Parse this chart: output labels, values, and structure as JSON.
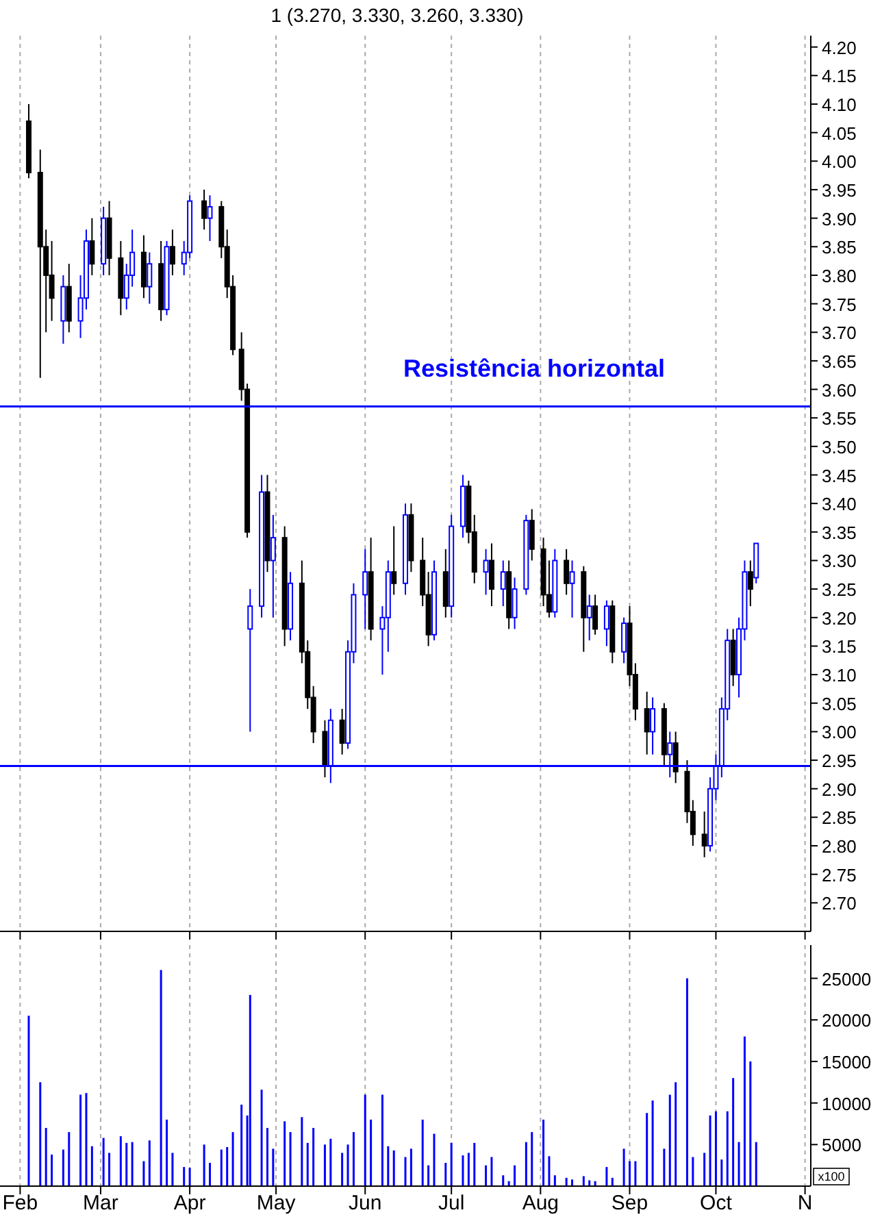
{
  "chart_data": [
    {
      "type": "candlestick",
      "title": "1 (3.270, 3.330, 3.260, 3.330)",
      "tick_labels": "y",
      "grid": "x",
      "xlim": [
        "--01-25",
        "--11-03"
      ],
      "xticks": [
        {
          "value": "--02-01",
          "label": null
        },
        {
          "value": "--03-01",
          "label": null
        },
        {
          "value": "--04-01",
          "label": null
        },
        {
          "value": "--05-01",
          "label": null
        },
        {
          "value": "--06-01",
          "label": null
        },
        {
          "value": "--07-01",
          "label": null
        },
        {
          "value": "--08-01",
          "label": null
        },
        {
          "value": "--09-01",
          "label": null
        },
        {
          "value": "--10-01",
          "label": null
        },
        {
          "value": "--11-01",
          "label": null
        }
      ],
      "ylim": [
        2.65,
        4.22
      ],
      "yticks": [
        {
          "value": 2.7,
          "label": "2.70"
        },
        {
          "value": 2.75,
          "label": "2.75"
        },
        {
          "value": 2.8,
          "label": "2.80"
        },
        {
          "value": 2.85,
          "label": "2.85"
        },
        {
          "value": 2.9,
          "label": "2.90"
        },
        {
          "value": 2.95,
          "label": "2.95"
        },
        {
          "value": 3.0,
          "label": "3.00"
        },
        {
          "value": 3.05,
          "label": "3.05"
        },
        {
          "value": 3.1,
          "label": "3.10"
        },
        {
          "value": 3.15,
          "label": "3.15"
        },
        {
          "value": 3.2,
          "label": "3.20"
        },
        {
          "value": 3.25,
          "label": "3.25"
        },
        {
          "value": 3.3,
          "label": "3.30"
        },
        {
          "value": 3.35,
          "label": "3.35"
        },
        {
          "value": 3.4,
          "label": "3.40"
        },
        {
          "value": 3.45,
          "label": "3.45"
        },
        {
          "value": 3.5,
          "label": "3.50"
        },
        {
          "value": 3.55,
          "label": "3.55"
        },
        {
          "value": 3.6,
          "label": "3.60"
        },
        {
          "value": 3.65,
          "label": "3.65"
        },
        {
          "value": 3.7,
          "label": "3.70"
        },
        {
          "value": 3.75,
          "label": "3.75"
        },
        {
          "value": 3.8,
          "label": "3.80"
        },
        {
          "value": 3.85,
          "label": "3.85"
        },
        {
          "value": 3.9,
          "label": "3.90"
        },
        {
          "value": 3.95,
          "label": "3.95"
        },
        {
          "value": 4.0,
          "label": "4.00"
        },
        {
          "value": 4.05,
          "label": "4.05"
        },
        {
          "value": 4.1,
          "label": "4.10"
        },
        {
          "value": 4.15,
          "label": "4.15"
        },
        {
          "value": 4.2,
          "label": "4.20"
        }
      ],
      "ref_lines": [
        {
          "axis": "y",
          "value": 3.57,
          "label": "Resistência horizontal",
          "color": "#0000ff"
        },
        {
          "axis": "y",
          "value": 2.94,
          "color": "#0000ff"
        }
      ],
      "x": [
        "--02-04",
        "--02-08",
        "--02-10",
        "--02-12",
        "--02-16",
        "--02-18",
        "--02-22",
        "--02-24",
        "--02-26",
        "--03-02",
        "--03-04",
        "--03-08",
        "--03-10",
        "--03-12",
        "--03-16",
        "--03-18",
        "--03-22",
        "--03-24",
        "--03-26",
        "--03-30",
        "--04-01",
        "--04-06",
        "--04-08",
        "--04-12",
        "--04-14",
        "--04-16",
        "--04-19",
        "--04-21",
        "--04-22",
        "--04-26",
        "--04-28",
        "--04-30",
        "--05-04",
        "--05-06",
        "--05-10",
        "--05-12",
        "--05-14",
        "--05-18",
        "--05-20",
        "--05-24",
        "--05-26",
        "--05-28",
        "--06-01",
        "--06-03",
        "--06-07",
        "--06-09",
        "--06-11",
        "--06-15",
        "--06-17",
        "--06-21",
        "--06-23",
        "--06-25",
        "--06-29",
        "--07-01",
        "--07-05",
        "--07-07",
        "--07-09",
        "--07-13",
        "--07-15",
        "--07-19",
        "--07-21",
        "--07-23",
        "--07-27",
        "--07-29",
        "--08-02",
        "--08-04",
        "--08-06",
        "--08-10",
        "--08-12",
        "--08-16",
        "--08-18",
        "--08-20",
        "--08-24",
        "--08-26",
        "--08-30",
        "--09-01",
        "--09-03",
        "--09-07",
        "--09-09",
        "--09-13",
        "--09-15",
        "--09-17",
        "--09-21",
        "--09-23",
        "--09-27",
        "--09-29",
        "--10-01",
        "--10-03",
        "--10-05",
        "--10-07",
        "--10-09",
        "--10-11",
        "--10-13",
        "--10-15"
      ],
      "ohlc": [
        [
          4.07,
          4.1,
          3.97,
          3.98
        ],
        [
          3.98,
          4.02,
          3.62,
          3.85
        ],
        [
          3.85,
          3.88,
          3.7,
          3.8
        ],
        [
          3.8,
          3.86,
          3.72,
          3.76
        ],
        [
          3.72,
          3.8,
          3.68,
          3.78
        ],
        [
          3.78,
          3.82,
          3.7,
          3.72
        ],
        [
          3.72,
          3.8,
          3.69,
          3.76
        ],
        [
          3.76,
          3.88,
          3.74,
          3.86
        ],
        [
          3.86,
          3.9,
          3.8,
          3.82
        ],
        [
          3.82,
          3.92,
          3.8,
          3.9
        ],
        [
          3.9,
          3.93,
          3.8,
          3.83
        ],
        [
          3.83,
          3.86,
          3.73,
          3.76
        ],
        [
          3.76,
          3.82,
          3.74,
          3.8
        ],
        [
          3.8,
          3.88,
          3.78,
          3.84
        ],
        [
          3.84,
          3.87,
          3.76,
          3.78
        ],
        [
          3.78,
          3.84,
          3.75,
          3.82
        ],
        [
          3.82,
          3.86,
          3.72,
          3.74
        ],
        [
          3.74,
          3.86,
          3.73,
          3.85
        ],
        [
          3.85,
          3.88,
          3.8,
          3.82
        ],
        [
          3.82,
          3.86,
          3.8,
          3.84
        ],
        [
          3.84,
          3.94,
          3.83,
          3.93
        ],
        [
          3.93,
          3.95,
          3.88,
          3.9
        ],
        [
          3.9,
          3.94,
          3.86,
          3.92
        ],
        [
          3.92,
          3.93,
          3.83,
          3.85
        ],
        [
          3.85,
          3.88,
          3.76,
          3.78
        ],
        [
          3.78,
          3.8,
          3.66,
          3.67
        ],
        [
          3.67,
          3.7,
          3.58,
          3.6
        ],
        [
          3.6,
          3.61,
          3.34,
          3.35
        ],
        [
          3.18,
          3.25,
          3.0,
          3.22
        ],
        [
          3.22,
          3.45,
          3.2,
          3.42
        ],
        [
          3.42,
          3.45,
          3.28,
          3.3
        ],
        [
          3.3,
          3.38,
          3.2,
          3.34
        ],
        [
          3.34,
          3.36,
          3.15,
          3.18
        ],
        [
          3.18,
          3.28,
          3.16,
          3.26
        ],
        [
          3.26,
          3.3,
          3.12,
          3.14
        ],
        [
          3.14,
          3.16,
          3.04,
          3.06
        ],
        [
          3.06,
          3.08,
          2.98,
          3.0
        ],
        [
          3.0,
          3.02,
          2.92,
          2.94
        ],
        [
          2.94,
          3.04,
          2.91,
          3.02
        ],
        [
          3.02,
          3.04,
          2.96,
          2.98
        ],
        [
          2.98,
          3.16,
          2.97,
          3.14
        ],
        [
          3.14,
          3.26,
          3.12,
          3.24
        ],
        [
          3.24,
          3.32,
          3.18,
          3.28
        ],
        [
          3.28,
          3.34,
          3.16,
          3.18
        ],
        [
          3.18,
          3.22,
          3.1,
          3.2
        ],
        [
          3.2,
          3.3,
          3.14,
          3.28
        ],
        [
          3.28,
          3.36,
          3.24,
          3.26
        ],
        [
          3.26,
          3.4,
          3.24,
          3.38
        ],
        [
          3.38,
          3.4,
          3.28,
          3.3
        ],
        [
          3.3,
          3.34,
          3.22,
          3.24
        ],
        [
          3.24,
          3.28,
          3.15,
          3.17
        ],
        [
          3.17,
          3.3,
          3.16,
          3.28
        ],
        [
          3.28,
          3.32,
          3.2,
          3.22
        ],
        [
          3.22,
          3.38,
          3.2,
          3.36
        ],
        [
          3.36,
          3.45,
          3.34,
          3.43
        ],
        [
          3.43,
          3.44,
          3.33,
          3.35
        ],
        [
          3.35,
          3.38,
          3.26,
          3.28
        ],
        [
          3.28,
          3.32,
          3.24,
          3.3
        ],
        [
          3.3,
          3.33,
          3.22,
          3.25
        ],
        [
          3.25,
          3.3,
          3.22,
          3.28
        ],
        [
          3.28,
          3.3,
          3.18,
          3.2
        ],
        [
          3.2,
          3.27,
          3.18,
          3.25
        ],
        [
          3.25,
          3.38,
          3.24,
          3.37
        ],
        [
          3.37,
          3.39,
          3.3,
          3.32
        ],
        [
          3.32,
          3.34,
          3.22,
          3.24
        ],
        [
          3.24,
          3.3,
          3.2,
          3.21
        ],
        [
          3.21,
          3.32,
          3.2,
          3.3
        ],
        [
          3.3,
          3.32,
          3.24,
          3.26
        ],
        [
          3.26,
          3.3,
          3.2,
          3.28
        ],
        [
          3.28,
          3.29,
          3.14,
          3.2
        ],
        [
          3.2,
          3.24,
          3.16,
          3.22
        ],
        [
          3.22,
          3.24,
          3.17,
          3.18
        ],
        [
          3.18,
          3.23,
          3.15,
          3.22
        ],
        [
          3.22,
          3.23,
          3.12,
          3.14
        ],
        [
          3.14,
          3.2,
          3.12,
          3.19
        ],
        [
          3.19,
          3.22,
          3.08,
          3.1
        ],
        [
          3.1,
          3.12,
          3.02,
          3.04
        ],
        [
          3.04,
          3.07,
          2.96,
          3.0
        ],
        [
          3.0,
          3.06,
          2.96,
          3.04
        ],
        [
          3.04,
          3.05,
          2.94,
          2.96
        ],
        [
          2.96,
          3.0,
          2.92,
          2.98
        ],
        [
          2.98,
          3.0,
          2.91,
          2.93
        ],
        [
          2.93,
          2.95,
          2.84,
          2.86
        ],
        [
          2.86,
          2.88,
          2.8,
          2.82
        ],
        [
          2.82,
          2.86,
          2.78,
          2.8
        ],
        [
          2.8,
          2.92,
          2.79,
          2.9
        ],
        [
          2.9,
          2.96,
          2.88,
          2.94
        ],
        [
          2.94,
          3.06,
          2.92,
          3.04
        ],
        [
          3.04,
          3.18,
          3.02,
          3.16
        ],
        [
          3.16,
          3.18,
          3.08,
          3.1
        ],
        [
          3.1,
          3.2,
          3.06,
          3.18
        ],
        [
          3.18,
          3.3,
          3.16,
          3.28
        ],
        [
          3.28,
          3.3,
          3.22,
          3.25
        ],
        [
          3.27,
          3.33,
          3.26,
          3.33
        ]
      ]
    },
    {
      "type": "bar",
      "ylabel": "x100",
      "grid": "x",
      "xlim": [
        "--01-25",
        "--11-03"
      ],
      "xticks": [
        {
          "value": "--02-01",
          "label": "Feb"
        },
        {
          "value": "--03-01",
          "label": "Mar"
        },
        {
          "value": "--04-01",
          "label": "Apr"
        },
        {
          "value": "--05-01",
          "label": "May"
        },
        {
          "value": "--06-01",
          "label": "Jun"
        },
        {
          "value": "--07-01",
          "label": "Jul"
        },
        {
          "value": "--08-01",
          "label": "Aug"
        },
        {
          "value": "--09-01",
          "label": "Sep"
        },
        {
          "value": "--10-01",
          "label": "Oct"
        },
        {
          "value": "--11-01",
          "label": "N"
        }
      ],
      "ylim": [
        0,
        29000
      ],
      "yticks": [
        5000,
        10000,
        15000,
        20000,
        25000
      ],
      "x": [
        "--02-04",
        "--02-08",
        "--02-10",
        "--02-12",
        "--02-16",
        "--02-18",
        "--02-22",
        "--02-24",
        "--02-26",
        "--03-02",
        "--03-04",
        "--03-08",
        "--03-10",
        "--03-12",
        "--03-16",
        "--03-18",
        "--03-22",
        "--03-24",
        "--03-26",
        "--03-30",
        "--04-01",
        "--04-06",
        "--04-08",
        "--04-12",
        "--04-14",
        "--04-16",
        "--04-19",
        "--04-21",
        "--04-22",
        "--04-26",
        "--04-28",
        "--04-30",
        "--05-04",
        "--05-06",
        "--05-10",
        "--05-12",
        "--05-14",
        "--05-18",
        "--05-20",
        "--05-24",
        "--05-26",
        "--05-28",
        "--06-01",
        "--06-03",
        "--06-07",
        "--06-09",
        "--06-11",
        "--06-15",
        "--06-17",
        "--06-21",
        "--06-23",
        "--06-25",
        "--06-29",
        "--07-01",
        "--07-05",
        "--07-07",
        "--07-09",
        "--07-13",
        "--07-15",
        "--07-19",
        "--07-21",
        "--07-23",
        "--07-27",
        "--07-29",
        "--08-02",
        "--08-04",
        "--08-06",
        "--08-10",
        "--08-12",
        "--08-16",
        "--08-18",
        "--08-20",
        "--08-24",
        "--08-26",
        "--08-30",
        "--09-01",
        "--09-03",
        "--09-07",
        "--09-09",
        "--09-13",
        "--09-15",
        "--09-17",
        "--09-21",
        "--09-23",
        "--09-27",
        "--09-29",
        "--10-01",
        "--10-03",
        "--10-05",
        "--10-07",
        "--10-09",
        "--10-11",
        "--10-13",
        "--10-15"
      ],
      "series": [
        {
          "color": "#0000ff",
          "values": [
            20500,
            12500,
            7000,
            3800,
            4400,
            6500,
            11000,
            11200,
            4800,
            5800,
            4000,
            6000,
            5200,
            5300,
            3000,
            5500,
            26000,
            8000,
            4000,
            2300,
            2200,
            5000,
            2800,
            4400,
            4700,
            6500,
            9800,
            8500,
            23000,
            11600,
            7000,
            4500,
            7800,
            6500,
            8300,
            5200,
            7000,
            5000,
            5700,
            4000,
            5000,
            6500,
            11000,
            8000,
            11000,
            4800,
            4300,
            3500,
            4500,
            8000,
            2500,
            6300,
            2800,
            5200,
            3700,
            4000,
            5200,
            2500,
            3500,
            1300,
            600,
            2500,
            5300,
            6500,
            8000,
            3600,
            1300,
            1000,
            800,
            1200,
            700,
            600,
            2300,
            1000,
            4500,
            3000,
            3000,
            8800,
            10300,
            4500,
            11000,
            12500,
            25000,
            3500,
            4000,
            8500,
            9000,
            3200,
            9000,
            13000,
            5300,
            18000,
            15000,
            5300
          ]
        }
      ]
    }
  ]
}
